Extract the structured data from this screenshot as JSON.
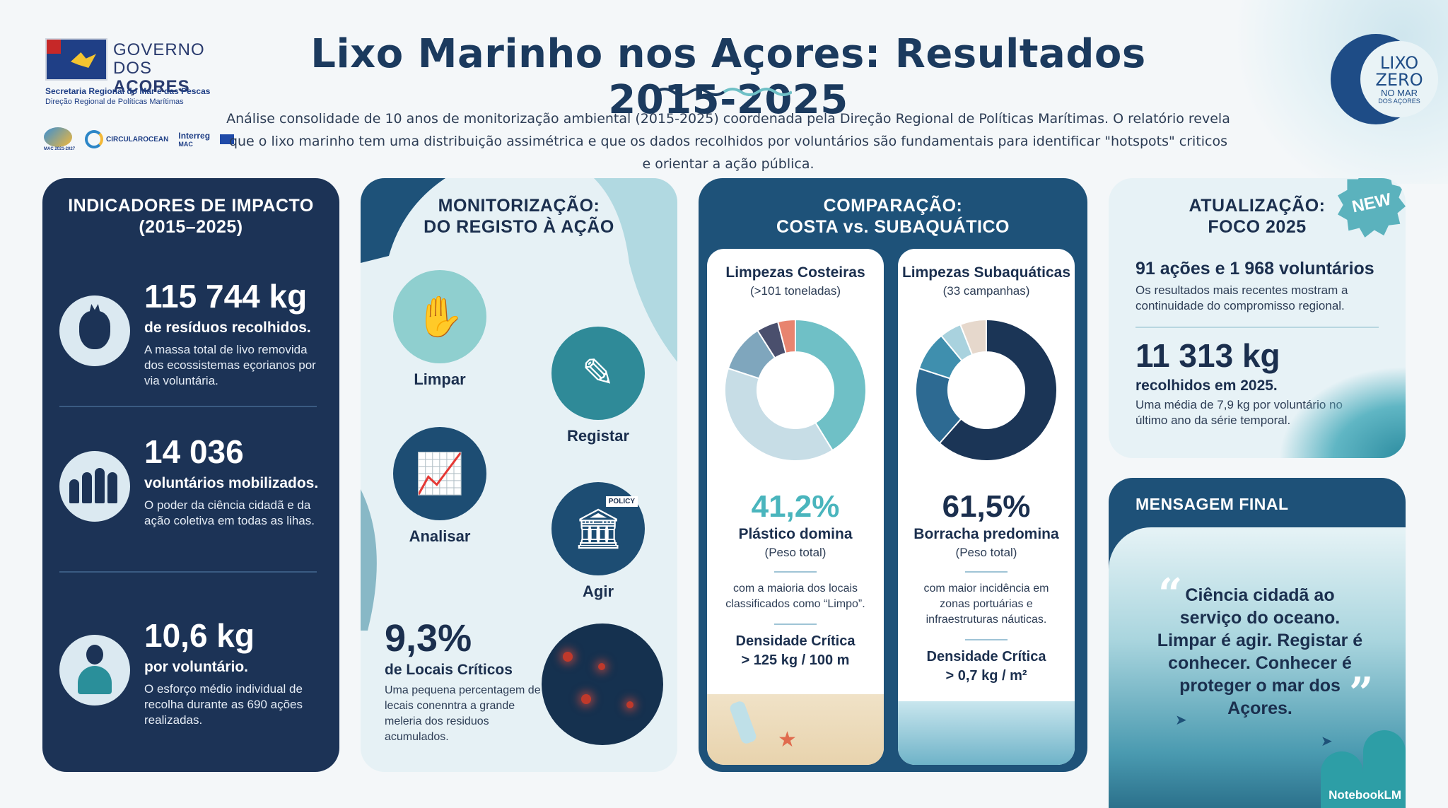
{
  "header": {
    "gov_line1": "GOVERNO",
    "gov_line2a": "DOS ",
    "gov_line2b": "AÇORES",
    "gov_sub1": "Secretaria Regional do Mar e das Pescas",
    "gov_sub2": "Direção Regional de Políticas Marítimas",
    "partners": [
      "MAC 2021-2027",
      "CIRCULAROCEAN",
      "Interreg",
      "MAC"
    ],
    "title": "Lixo Marinho nos Açores: Resultados 2015-2025",
    "intro": "Análise consolidade de 10 anos de monitorização ambiental (2015-2025) coordenada pela Direção Regional de Políticas Marítimas. O relatório revela que o lixo marinho tem uma distribuição assimétrica e que os dados recolhidos por voluntários são fundamentais para identificar \"hotspots\" criticos e orientar a ação pública.",
    "badge": {
      "t1": "LIXO",
      "t2": "ZERO",
      "t3": "NO MAR",
      "t4": "DOS AÇORES"
    }
  },
  "impact": {
    "title_line1": "INDICADORES DE IMPACTO",
    "title_line2": "(2015–2025)",
    "stats": [
      {
        "icon": "trash-bag-icon",
        "big": "115 744 kg",
        "strong": "de resíduos recolhidos.",
        "desc": "A massa total de livo removida dos ecossistemas eçorianos por via voluntária."
      },
      {
        "icon": "people-group-icon",
        "big": "14 036",
        "strong": "voluntários mobilizados.",
        "desc": "O poder da ciência cidadã e da ação coletiva em todas as lihas."
      },
      {
        "icon": "volunteer-icon",
        "big": "10,6 kg",
        "strong": "por voluntário.",
        "desc": "O esforço médio individual de recolha durante as 690 ações realizadas."
      }
    ]
  },
  "monitoring": {
    "title_line1": "MONITORIZAÇÃO:",
    "title_line2": "DO REGISTO À AÇÃO",
    "steps": [
      {
        "label": "Limpar",
        "icon": "hand-bottle-icon"
      },
      {
        "label": "Registar",
        "icon": "tablet-writing-icon"
      },
      {
        "label": "Analisar",
        "icon": "chart-screen-icon"
      },
      {
        "label": "Agir",
        "icon": "policy-building-icon",
        "policy_text": "POLICY"
      }
    ],
    "critical": {
      "big": "9,3%",
      "strong": "de Locais Críticos",
      "desc": "Uma pequena percentagem de lecais conenntra a grande meleria dos residuos acumulados."
    }
  },
  "comparison": {
    "title_line1": "COMPARAÇÃO:",
    "title_line2": "COSTA vs. SUBAQUÁTICO",
    "coastal": {
      "title": "Limpezas Costeiras",
      "sub": "(>101 toneladas)",
      "pct": "41,2%",
      "pct_label": "Plástico domina",
      "pct_sub": "(Peso total)",
      "note": "com a maioria dos locais classificados como “Limpo”.",
      "dens_title": "Densidade Crítica",
      "dens_val": "> 125 kg / 100 m"
    },
    "underwater": {
      "title": "Limpezas Subaquáticas",
      "sub": "(33 campanhas)",
      "pct": "61,5%",
      "pct_label": "Borracha predomina",
      "pct_sub": "(Peso total)",
      "note": "com maior incidência em zonas portuárias e infraestruturas náuticas.",
      "dens_title": "Densidade Crítica",
      "dens_val": "> 0,7 kg / m²"
    }
  },
  "chart_data": [
    {
      "type": "pie",
      "title": "Limpezas Costeiras",
      "slices": [
        {
          "value": 41.2,
          "color": "#6fc0c6"
        },
        {
          "value": 38.8,
          "color": "#c7dde6"
        },
        {
          "value": 11.0,
          "color": "#7fa6bd"
        },
        {
          "value": 5.0,
          "color": "#4a4f6d"
        },
        {
          "value": 4.0,
          "color": "#e8846f"
        }
      ]
    },
    {
      "type": "pie",
      "title": "Limpezas Subaquáticas",
      "slices": [
        {
          "value": 61.5,
          "color": "#1b3556"
        },
        {
          "value": 18.5,
          "color": "#2d6a92"
        },
        {
          "value": 9.0,
          "color": "#3f8fae"
        },
        {
          "value": 5.0,
          "color": "#a9d2de"
        },
        {
          "value": 6.0,
          "color": "#e6d8cc"
        }
      ]
    }
  ],
  "update": {
    "title_line1": "ATUALIZAÇÃO:",
    "title_line2": "FOCO 2025",
    "new_badge": "NEW",
    "strong1": "91 ações e 1 968 voluntários",
    "desc1": "Os resultados mais recentes mostram a continuidade do compromisso regional.",
    "big": "11 313 kg",
    "strong2": "recolhidos em 2025.",
    "desc2": "Uma média de 7,9 kg por voluntário no último ano da série temporal."
  },
  "final": {
    "title": "MENSAGEM FINAL",
    "quote": "Ciência cidadã ao serviço do oceano. Limpar é agir. Registar é conhecer. Conhecer é proteger o mar dos Açores.",
    "watermark": "NotebookLM"
  },
  "colors": {
    "navy": "#1c3356",
    "teal": "#1e5279",
    "aqua": "#4ab5bd",
    "light": "#e6f1f5"
  }
}
